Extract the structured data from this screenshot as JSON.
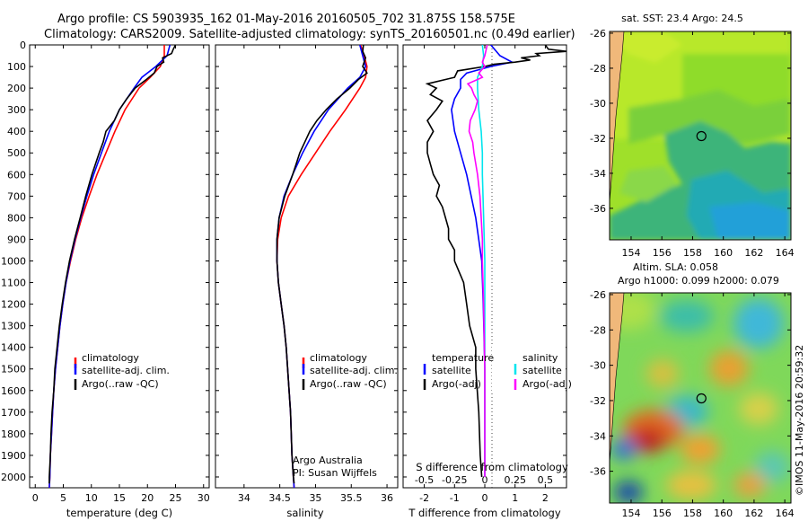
{
  "header": {
    "line1": "Argo profile: CS 5903935_162 01-May-2016 20160505_702 31.875S 158.575E",
    "line2": "Climatology: CARS2009. Satellite-adjusted climatology: synTS_20160501.nc (0.49d earlier)"
  },
  "colors": {
    "climatology": "#ff0000",
    "satellite": "#0000ff",
    "argo": "#000000",
    "sal_satellite": "#00e5ee",
    "sal_argo": "#ff00ff"
  },
  "chart_data": [
    {
      "type": "line",
      "name": "temperature-panel",
      "xlabel": "temperature (deg C)",
      "ylabel": "",
      "xlim": [
        -1,
        31
      ],
      "ylim": [
        2050,
        0
      ],
      "xticks": [
        "0",
        "5",
        "10",
        "15",
        "20",
        "25",
        "30"
      ],
      "yticks": [
        "0",
        "100",
        "200",
        "300",
        "400",
        "500",
        "600",
        "700",
        "800",
        "900",
        "1000",
        "1100",
        "1200",
        "1300",
        "1400",
        "1500",
        "1600",
        "1700",
        "1800",
        "1900",
        "2000"
      ],
      "legend": [
        "climatology",
        "satellite-adj. clim.",
        "Argo(..raw -QC)"
      ],
      "series": [
        {
          "name": "climatology",
          "depth": [
            0,
            50,
            100,
            150,
            200,
            300,
            400,
            500,
            600,
            700,
            800,
            900,
            1000,
            1100,
            1200,
            1300,
            1400,
            1500,
            1600,
            1700,
            1800,
            1900,
            2000,
            2050
          ],
          "values": [
            23.0,
            23.0,
            22.3,
            20.5,
            18.5,
            16.0,
            14.2,
            12.6,
            11.0,
            9.6,
            8.3,
            7.2,
            6.3,
            5.5,
            4.9,
            4.4,
            4.0,
            3.6,
            3.3,
            3.1,
            2.9,
            2.7,
            2.6,
            2.5
          ]
        },
        {
          "name": "satellite",
          "depth": [
            0,
            50,
            100,
            150,
            200,
            300,
            400,
            500,
            600,
            700,
            800,
            900,
            1000,
            1100,
            1200,
            1300,
            1400,
            1500,
            1600,
            1700,
            1800,
            1900,
            2000,
            2050
          ],
          "values": [
            24.0,
            23.5,
            21.5,
            19.0,
            17.6,
            15.0,
            13.2,
            11.8,
            10.4,
            9.2,
            8.1,
            7.1,
            6.2,
            5.5,
            4.9,
            4.4,
            4.0,
            3.6,
            3.3,
            3.1,
            2.9,
            2.7,
            2.6,
            2.5
          ]
        },
        {
          "name": "argo",
          "depth": [
            0,
            20,
            40,
            60,
            80,
            100,
            130,
            160,
            200,
            250,
            300,
            350,
            400,
            450,
            500,
            600,
            700,
            800,
            900,
            1000,
            1100,
            1200,
            1300,
            1400,
            1500,
            1600,
            1700,
            1800,
            1900,
            2000,
            2030
          ],
          "values": [
            25.0,
            24.6,
            24.3,
            22.7,
            22.9,
            21.7,
            21.2,
            19.8,
            17.8,
            16.3,
            15.0,
            14.1,
            12.6,
            12.1,
            11.4,
            10.1,
            9.0,
            8.0,
            7.0,
            6.1,
            5.4,
            4.8,
            4.3,
            3.9,
            3.5,
            3.3,
            3.0,
            2.8,
            2.7,
            2.5,
            2.5
          ]
        }
      ]
    },
    {
      "type": "line",
      "name": "salinity-panel",
      "xlabel": "salinity",
      "xlim": [
        33.6,
        36.15
      ],
      "ylim": [
        2050,
        0
      ],
      "xticks": [
        "34",
        "34.5",
        "35",
        "35.5",
        "36"
      ],
      "legend": [
        "climatology",
        "satellite-adj. clim.",
        "Argo(..raw -QC)"
      ],
      "note": [
        "Argo Australia",
        "PI: Susan Wijffels"
      ],
      "series": [
        {
          "name": "climatology",
          "depth": [
            0,
            50,
            100,
            150,
            200,
            300,
            400,
            500,
            600,
            700,
            800,
            900,
            1000,
            1100,
            1200,
            1300,
            1400,
            1500,
            1600,
            1700,
            1800,
            1900,
            2000,
            2050
          ],
          "values": [
            35.63,
            35.68,
            35.72,
            35.7,
            35.62,
            35.42,
            35.2,
            35.0,
            34.8,
            34.62,
            34.52,
            34.47,
            34.46,
            34.48,
            34.52,
            34.56,
            34.59,
            34.61,
            34.63,
            34.65,
            34.66,
            34.67,
            34.69,
            34.7
          ]
        },
        {
          "name": "satellite",
          "depth": [
            0,
            50,
            100,
            150,
            200,
            300,
            400,
            500,
            600,
            700,
            800,
            900,
            1000,
            1100,
            1200,
            1300,
            1400,
            1500,
            1600,
            1700,
            1800,
            1900,
            2000,
            2050
          ],
          "values": [
            35.62,
            35.66,
            35.7,
            35.62,
            35.45,
            35.18,
            34.98,
            34.82,
            34.68,
            34.56,
            34.49,
            34.46,
            34.46,
            34.48,
            34.52,
            34.56,
            34.59,
            34.61,
            34.63,
            34.65,
            34.66,
            34.67,
            34.69,
            34.7
          ]
        },
        {
          "name": "argo",
          "depth": [
            0,
            30,
            60,
            100,
            130,
            160,
            200,
            250,
            300,
            350,
            400,
            450,
            500,
            550,
            600,
            700,
            800,
            900,
            1000,
            1100,
            1200,
            1300,
            1400,
            1500,
            1600,
            1700,
            1800,
            1900,
            2000,
            2030
          ],
          "values": [
            35.67,
            35.66,
            35.7,
            35.66,
            35.72,
            35.6,
            35.48,
            35.3,
            35.15,
            35.02,
            34.92,
            34.85,
            34.78,
            34.73,
            34.68,
            34.57,
            34.49,
            34.46,
            34.46,
            34.48,
            34.52,
            34.56,
            34.59,
            34.61,
            34.63,
            34.65,
            34.66,
            34.67,
            34.69,
            34.7
          ]
        }
      ]
    },
    {
      "type": "line",
      "name": "difference-panel",
      "xlabel": "T difference from climatology",
      "toplabel": "S difference from climatology",
      "xlim": [
        -2.7,
        2.7
      ],
      "ylim": [
        2050,
        0
      ],
      "xticks": [
        "-2",
        "-1",
        "0",
        "1",
        "2"
      ],
      "sticks": [
        "-0.5",
        "-0.25",
        "0",
        "0.25",
        "0.5"
      ],
      "legend_temp": {
        "title": "temperature",
        "items": [
          "satellite",
          "Argo(-adj)"
        ]
      },
      "legend_sal": {
        "title": "salinity",
        "items": [
          "satellite",
          "Argo(-adj)"
        ]
      },
      "series": [
        {
          "name": "T satellite",
          "depth": [
            0,
            50,
            80,
            100,
            130,
            160,
            200,
            250,
            300,
            400,
            500,
            600,
            800,
            1000,
            1200,
            1500,
            2000
          ],
          "values": [
            0.2,
            0.5,
            0.9,
            0.2,
            -0.6,
            -0.8,
            -0.8,
            -1.0,
            -1.1,
            -1.0,
            -0.8,
            -0.6,
            -0.3,
            -0.1,
            -0.05,
            0,
            0
          ]
        },
        {
          "name": "T argo",
          "depth": [
            0,
            20,
            30,
            40,
            50,
            60,
            70,
            80,
            90,
            100,
            120,
            150,
            180,
            200,
            230,
            260,
            300,
            350,
            400,
            450,
            500,
            550,
            600,
            650,
            700,
            750,
            800,
            850,
            900,
            950,
            1000,
            1100,
            1200,
            1300,
            1400,
            1500,
            1700,
            1900,
            2000
          ],
          "values": [
            2.0,
            2.1,
            2.7,
            1.7,
            1.8,
            1.2,
            1.5,
            1.0,
            0.3,
            0.0,
            -0.9,
            -1.0,
            -1.9,
            -1.6,
            -1.8,
            -1.4,
            -1.6,
            -1.9,
            -1.7,
            -1.9,
            -1.9,
            -1.8,
            -1.7,
            -1.5,
            -1.6,
            -1.4,
            -1.3,
            -1.2,
            -1.2,
            -1.0,
            -1.0,
            -0.7,
            -0.6,
            -0.5,
            -0.3,
            -0.3,
            -0.2,
            -0.15,
            -0.1
          ]
        },
        {
          "name": "S satellite",
          "depth": [
            0,
            50,
            100,
            150,
            200,
            300,
            400,
            500,
            600,
            800,
            1000,
            1200,
            1500,
            2000
          ],
          "values": [
            -0.02,
            -0.01,
            -0.02,
            -0.06,
            -0.06,
            -0.05,
            -0.03,
            -0.02,
            -0.02,
            -0.01,
            0,
            0,
            0,
            0
          ]
        },
        {
          "name": "S argo",
          "depth": [
            0,
            50,
            80,
            100,
            130,
            150,
            180,
            200,
            230,
            260,
            300,
            350,
            400,
            450,
            500,
            600,
            700,
            800,
            900,
            1000,
            1200,
            1500,
            2000
          ],
          "values": [
            0.02,
            0.0,
            -0.02,
            0.0,
            -0.05,
            -0.02,
            -0.14,
            -0.11,
            -0.09,
            -0.06,
            -0.08,
            -0.12,
            -0.13,
            -0.1,
            -0.09,
            -0.06,
            -0.04,
            -0.03,
            -0.02,
            -0.02,
            -0.01,
            0,
            0
          ]
        }
      ]
    },
    {
      "type": "heatmap",
      "name": "sst-map",
      "title": "sat. SST: 23.4  Argo: 24.5",
      "xticks": [
        "154",
        "156",
        "158",
        "160",
        "162",
        "164"
      ],
      "yticks": [
        "-26",
        "-28",
        "-30",
        "-32",
        "-34",
        "-36"
      ],
      "marker": {
        "lon": 158.575,
        "lat": -31.875
      }
    },
    {
      "type": "heatmap",
      "name": "sla-map",
      "title1": "Altim. SLA: 0.058",
      "title2": "Argo h1000: 0.099 h2000: 0.079",
      "xticks": [
        "154",
        "156",
        "158",
        "160",
        "162",
        "164"
      ],
      "yticks": [
        "-26",
        "-28",
        "-30",
        "-32",
        "-34",
        "-36"
      ],
      "marker": {
        "lon": 158.575,
        "lat": -31.875
      }
    }
  ],
  "footer": {
    "stamp": "©IMOS 11-May-2016 20:59:32"
  }
}
